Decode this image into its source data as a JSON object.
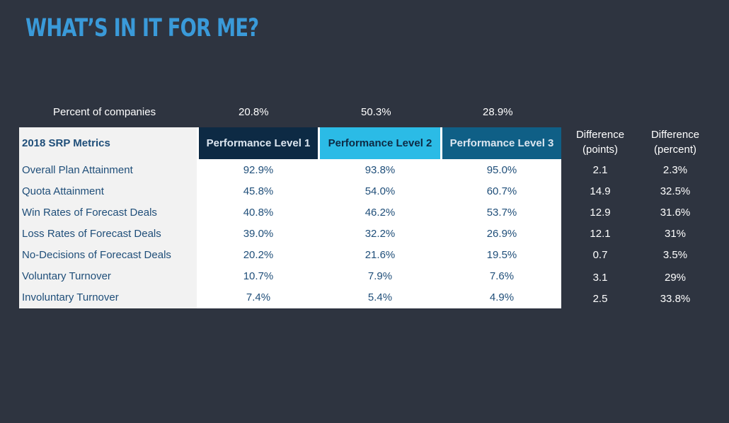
{
  "title": "WHAT’S IN IT FOR ME?",
  "percent_row": {
    "label": "Percent of companies",
    "values": [
      "20.8%",
      "50.3%",
      "28.9%"
    ]
  },
  "table": {
    "header": {
      "metric": "2018 SRP Metrics",
      "levels": [
        "Performance Level 1",
        "Performance Level 2",
        "Performance Level 3"
      ]
    },
    "rows": [
      {
        "metric": "Overall Plan Attainment",
        "l1": "92.9%",
        "l2": "93.8%",
        "l3": "95.0%"
      },
      {
        "metric": "Quota Attainment",
        "l1": "45.8%",
        "l2": "54.0%",
        "l3": "60.7%"
      },
      {
        "metric": "Win Rates of Forecast Deals",
        "l1": "40.8%",
        "l2": "46.2%",
        "l3": "53.7%"
      },
      {
        "metric": "Loss Rates of Forecast Deals",
        "l1": "39.0%",
        "l2": "32.2%",
        "l3": "26.9%"
      },
      {
        "metric": "No-Decisions of Forecast Deals",
        "l1": "20.2%",
        "l2": "21.6%",
        "l3": "19.5%"
      },
      {
        "metric": "Voluntary Turnover",
        "l1": "10.7%",
        "l2": "7.9%",
        "l3": "7.6%"
      },
      {
        "metric": "Involuntary Turnover",
        "l1": "7.4%",
        "l2": "5.4%",
        "l3": "4.9%"
      }
    ]
  },
  "difference": {
    "points_header": "Difference (points)",
    "percent_header": "Difference (percent)",
    "rows": [
      {
        "points": "2.1",
        "percent": "2.3%"
      },
      {
        "points": "14.9",
        "percent": "32.5%"
      },
      {
        "points": "12.9",
        "percent": "31.6%"
      },
      {
        "points": "12.1",
        "percent": "31%"
      },
      {
        "points": "0.7",
        "percent": "3.5%"
      },
      {
        "points": "3.1",
        "percent": "29%"
      },
      {
        "points": "2.5",
        "percent": "33.8%"
      }
    ]
  },
  "colors": {
    "background": "#2e3440",
    "title": "#3a9ad9",
    "level1_header": "#0d2a44",
    "level2_header": "#2bbbe6",
    "level3_header": "#0f5f86",
    "table_text": "#1f4e79"
  }
}
